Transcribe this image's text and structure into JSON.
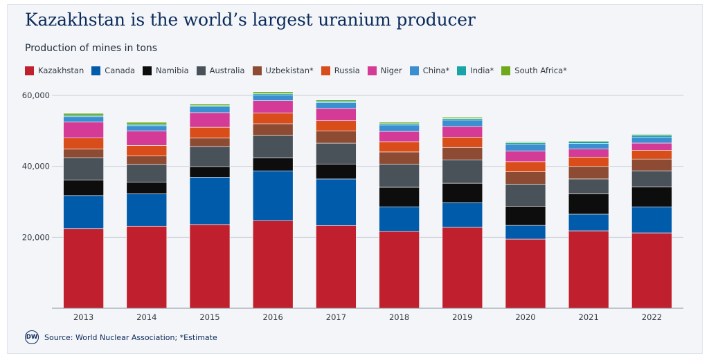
{
  "chart_data": {
    "type": "bar",
    "stacked": true,
    "title": "Kazakhstan is the world’s largest uranium producer",
    "subtitle": "Production of mines in tons",
    "categories": [
      "2013",
      "2014",
      "2015",
      "2016",
      "2017",
      "2018",
      "2019",
      "2020",
      "2021",
      "2022"
    ],
    "ylim": [
      0,
      60000
    ],
    "yticks": [
      20000,
      40000,
      60000
    ],
    "ytick_labels": [
      "20,000",
      "40,000",
      "60,000"
    ],
    "grid": true,
    "legend_position": "top-left",
    "series": [
      {
        "name": "Kazakhstan",
        "color": "#c0202e",
        "values": [
          22450,
          23130,
          23600,
          24690,
          23320,
          21700,
          22800,
          19480,
          21820,
          21230
        ]
      },
      {
        "name": "Canada",
        "color": "#005bab",
        "values": [
          9330,
          9130,
          13330,
          14040,
          13120,
          6900,
          6940,
          3880,
          4690,
          7350
        ]
      },
      {
        "name": "Namibia",
        "color": "#0d0d0d",
        "values": [
          4320,
          3250,
          3000,
          3650,
          4220,
          5500,
          5500,
          5410,
          5750,
          5610
        ]
      },
      {
        "name": "Australia",
        "color": "#4a5259",
        "values": [
          6350,
          5000,
          5650,
          6310,
          5880,
          6500,
          6600,
          6200,
          4190,
          4550
        ]
      },
      {
        "name": "Uzbekistan*",
        "color": "#8e4b34",
        "values": [
          2400,
          2400,
          2385,
          3325,
          3400,
          3450,
          3500,
          3500,
          3520,
          3300
        ]
      },
      {
        "name": "Russia",
        "color": "#d84d1a",
        "values": [
          3135,
          2990,
          3055,
          3005,
          2920,
          2900,
          2900,
          2850,
          2640,
          2500
        ]
      },
      {
        "name": "Niger",
        "color": "#d43b97",
        "values": [
          4520,
          4060,
          4120,
          3480,
          3450,
          2900,
          2980,
          2990,
          2250,
          2020
        ]
      },
      {
        "name": "China*",
        "color": "#3b8ed0",
        "values": [
          1500,
          1500,
          1620,
          1620,
          1650,
          1800,
          1800,
          1900,
          1600,
          1700
        ]
      },
      {
        "name": "India*",
        "color": "#19a5a7",
        "values": [
          385,
          385,
          385,
          385,
          420,
          420,
          450,
          450,
          550,
          550
        ]
      },
      {
        "name": "South Africa*",
        "color": "#6ea919",
        "values": [
          540,
          570,
          390,
          490,
          310,
          350,
          350,
          250,
          190,
          200
        ]
      }
    ]
  },
  "footer": {
    "logo_text": "DW",
    "source_text": "Source: World Nuclear Association; *Estimate"
  }
}
